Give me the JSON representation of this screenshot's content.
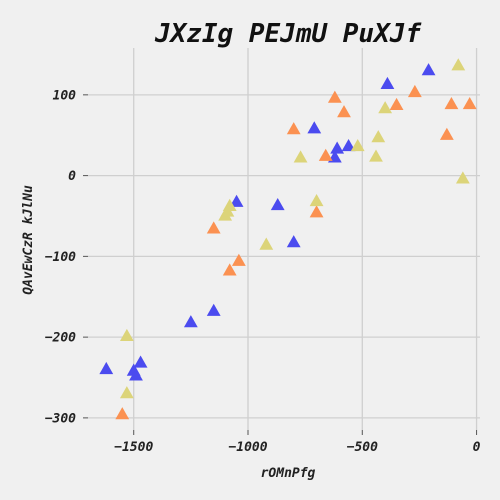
{
  "chart_data": {
    "type": "scatter",
    "title": "JXzIg PEJmU PuXJf",
    "xlabel": "rOMnPfg",
    "ylabel": "QAvEwCzR kJlNu",
    "xlim": [
      -1700,
      15
    ],
    "ylim": [
      -315,
      158
    ],
    "x_ticks": [
      {
        "value": -1500,
        "label": "−1500"
      },
      {
        "value": -1000,
        "label": "−1000"
      },
      {
        "value": -500,
        "label": "−500"
      },
      {
        "value": 0,
        "label": "0"
      }
    ],
    "y_ticks": [
      {
        "value": 100,
        "label": "100"
      },
      {
        "value": 0,
        "label": "0"
      },
      {
        "value": -100,
        "label": "−100"
      },
      {
        "value": -200,
        "label": "−200"
      },
      {
        "value": -300,
        "label": "−300"
      }
    ],
    "grid": true,
    "marker": "triangle",
    "series": [
      {
        "color": "#4b4bef",
        "points": [
          [
            -1620,
            -240
          ],
          [
            -1500,
            -242
          ],
          [
            -1490,
            -248
          ],
          [
            -1470,
            -232
          ],
          [
            -1250,
            -182
          ],
          [
            -1150,
            -168
          ],
          [
            -1050,
            -33
          ],
          [
            -870,
            -37
          ],
          [
            -800,
            -83
          ],
          [
            -710,
            58
          ],
          [
            -620,
            22
          ],
          [
            -610,
            33
          ],
          [
            -560,
            36
          ],
          [
            -390,
            113
          ],
          [
            -210,
            130
          ]
        ]
      },
      {
        "color": "#fb9151",
        "points": [
          [
            -1550,
            -296
          ],
          [
            -1150,
            -66
          ],
          [
            -1080,
            -118
          ],
          [
            -1040,
            -106
          ],
          [
            -800,
            57
          ],
          [
            -700,
            -46
          ],
          [
            -660,
            24
          ],
          [
            -620,
            96
          ],
          [
            -580,
            78
          ],
          [
            -350,
            87
          ],
          [
            -270,
            103
          ],
          [
            -130,
            50
          ],
          [
            -110,
            88
          ],
          [
            -30,
            88
          ]
        ]
      },
      {
        "color": "#dcd479",
        "points": [
          [
            -1530,
            -199
          ],
          [
            -1530,
            -270
          ],
          [
            -1100,
            -50
          ],
          [
            -1090,
            -45
          ],
          [
            -1080,
            -38
          ],
          [
            -920,
            -86
          ],
          [
            -770,
            22
          ],
          [
            -700,
            -32
          ],
          [
            -520,
            36
          ],
          [
            -440,
            23
          ],
          [
            -430,
            47
          ],
          [
            -400,
            83
          ],
          [
            -80,
            136
          ],
          [
            -60,
            -4
          ]
        ]
      }
    ]
  }
}
